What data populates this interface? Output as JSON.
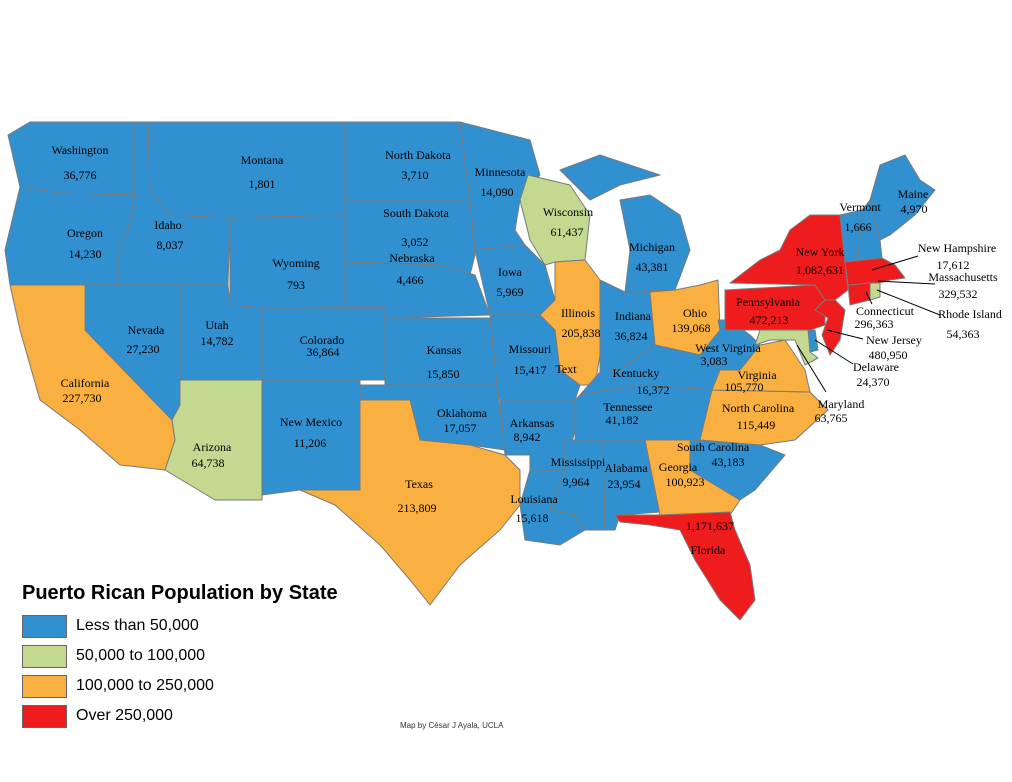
{
  "title": "Puerto Rican Population by State",
  "legend": [
    {
      "label": "Less than  50,000",
      "color": "#3090d0"
    },
    {
      "label": "50,000 to 100,000",
      "color": "#c3d98f"
    },
    {
      "label": "100,000 to 250,000",
      "color": "#f9b040"
    },
    {
      "label": "Over 250,000",
      "color": "#ee1c1c"
    }
  ],
  "credit": "Map by César J Ayala, UCLA",
  "stray_text": "Text",
  "states": [
    {
      "name": "Washington",
      "value": "36,776",
      "cls": 0
    },
    {
      "name": "Oregon",
      "value": "14,230",
      "cls": 0
    },
    {
      "name": "California",
      "value": "227,730",
      "cls": 2
    },
    {
      "name": "Nevada",
      "value": "27,230",
      "cls": 0
    },
    {
      "name": "Idaho",
      "value": "8,037",
      "cls": 0
    },
    {
      "name": "Montana",
      "value": "1,801",
      "cls": 0
    },
    {
      "name": "Wyoming",
      "value": "793",
      "cls": 0
    },
    {
      "name": "Utah",
      "value": "14,782",
      "cls": 0
    },
    {
      "name": "Arizona",
      "value": "64,738",
      "cls": 1
    },
    {
      "name": "Colorado",
      "value": "36,864",
      "cls": 0
    },
    {
      "name": "New Mexico",
      "value": "11,206",
      "cls": 0
    },
    {
      "name": "North Dakota",
      "value": "3,710",
      "cls": 0
    },
    {
      "name": "South Dakota",
      "value": "3,052",
      "cls": 0
    },
    {
      "name": "Nebraska",
      "value": "4,466",
      "cls": 0
    },
    {
      "name": "Kansas",
      "value": "15,850",
      "cls": 0
    },
    {
      "name": "Oklahoma",
      "value": "17,057",
      "cls": 0
    },
    {
      "name": "Texas",
      "value": "213,809",
      "cls": 2
    },
    {
      "name": "Minnesota",
      "value": "14,090",
      "cls": 0
    },
    {
      "name": "Iowa",
      "value": "5,969",
      "cls": 0
    },
    {
      "name": "Missouri",
      "value": "15,417",
      "cls": 0
    },
    {
      "name": "Arkansas",
      "value": "8,942",
      "cls": 0
    },
    {
      "name": "Louisiana",
      "value": "15,618",
      "cls": 0
    },
    {
      "name": "Wisconsin",
      "value": "61,437",
      "cls": 1
    },
    {
      "name": "Illinois",
      "value": "205,838",
      "cls": 2
    },
    {
      "name": "Michigan",
      "value": "43,381",
      "cls": 0
    },
    {
      "name": "Indiana",
      "value": "36,824",
      "cls": 0
    },
    {
      "name": "Ohio",
      "value": "139,068",
      "cls": 2
    },
    {
      "name": "Kentucky",
      "value": "16,372",
      "cls": 0
    },
    {
      "name": "Tennessee",
      "value": "41,182",
      "cls": 0
    },
    {
      "name": "Mississippi",
      "value": "9,964",
      "cls": 0
    },
    {
      "name": "Alabama",
      "value": "23,954",
      "cls": 0
    },
    {
      "name": "Georgia",
      "value": "100,923",
      "cls": 2
    },
    {
      "name": "Florida",
      "value": "1,171,637",
      "cls": 3
    },
    {
      "name": "South Carolina",
      "value": "43,183",
      "cls": 0
    },
    {
      "name": "North Carolina",
      "value": "115,449",
      "cls": 2
    },
    {
      "name": "Virginia",
      "value": "105,770",
      "cls": 2
    },
    {
      "name": "West Virginia",
      "value": "3,083",
      "cls": 0
    },
    {
      "name": "Pennsylvania",
      "value": "472,213",
      "cls": 3
    },
    {
      "name": "New York",
      "value": "1,082,631",
      "cls": 3
    },
    {
      "name": "Vermont",
      "value": "1,666",
      "cls": 0
    },
    {
      "name": "New Hampshire",
      "value": "17,612",
      "cls": 0
    },
    {
      "name": "Maine",
      "value": "4,970",
      "cls": 0
    },
    {
      "name": "Massachusetts",
      "value": "329,532",
      "cls": 3
    },
    {
      "name": "Connecticut",
      "value": "296,363",
      "cls": 3
    },
    {
      "name": "Rhode Island",
      "value": "54,363",
      "cls": 1
    },
    {
      "name": "New Jersey",
      "value": "480,950",
      "cls": 3
    },
    {
      "name": "Delaware",
      "value": "24,370",
      "cls": 0
    },
    {
      "name": "Maryland",
      "value": "63,765",
      "cls": 1
    }
  ]
}
